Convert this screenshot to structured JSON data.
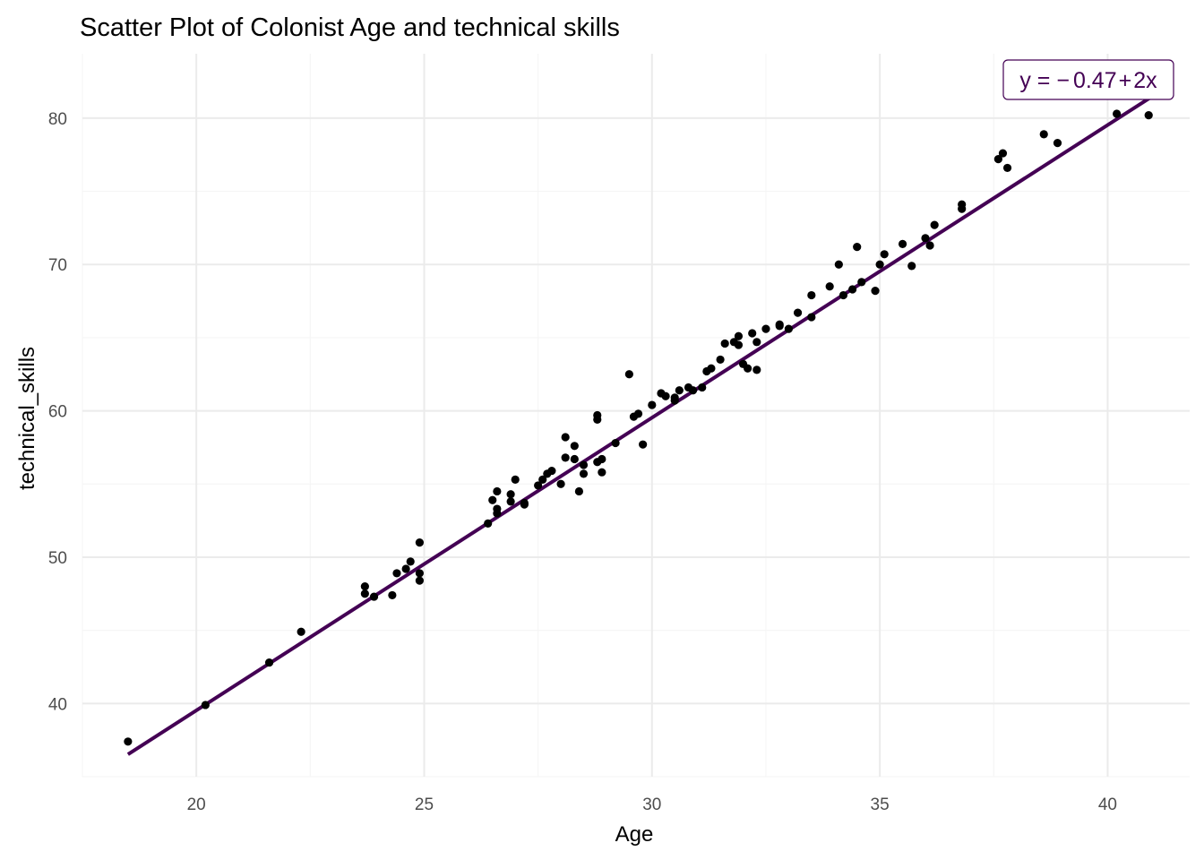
{
  "chart_data": {
    "type": "scatter",
    "title": "Scatter Plot of Colonist Age and technical skills",
    "xlabel": "Age",
    "ylabel": "technical_skills",
    "xlim": [
      17.5,
      41.8
    ],
    "ylim": [
      35,
      84.4
    ],
    "x_ticks": [
      20,
      25,
      30,
      35,
      40
    ],
    "x_tick_labels": [
      "20",
      "25",
      "30",
      "35",
      "40"
    ],
    "y_ticks": [
      40,
      50,
      60,
      70,
      80
    ],
    "y_tick_labels": [
      "40",
      "50",
      "60",
      "70",
      "80"
    ],
    "grid": true,
    "equation_label": {
      "prefix": "y = ",
      "minus": "−",
      "intercept": "0.47",
      "plus": "+",
      "slope_term": "2x",
      "position": "top-right"
    },
    "fit_line": {
      "intercept": -0.47,
      "slope": 2,
      "x_range": [
        18.5,
        41.0
      ]
    },
    "colors": {
      "points": "#000000",
      "fit_line": "#440154",
      "label_text": "#440154",
      "grid_major": "#ebebeb",
      "grid_minor": "#f5f5f5"
    },
    "points": [
      [
        18.5,
        37.4
      ],
      [
        20.2,
        39.9
      ],
      [
        21.6,
        42.8
      ],
      [
        22.3,
        44.9
      ],
      [
        23.7,
        47.5
      ],
      [
        23.7,
        48.0
      ],
      [
        23.9,
        47.3
      ],
      [
        24.3,
        47.4
      ],
      [
        24.4,
        48.9
      ],
      [
        24.6,
        49.2
      ],
      [
        24.7,
        49.7
      ],
      [
        24.9,
        51.0
      ],
      [
        24.9,
        48.9
      ],
      [
        24.9,
        48.4
      ],
      [
        26.4,
        52.3
      ],
      [
        26.5,
        53.9
      ],
      [
        26.6,
        53.3
      ],
      [
        26.6,
        53.0
      ],
      [
        26.6,
        54.5
      ],
      [
        26.9,
        54.3
      ],
      [
        26.9,
        53.8
      ],
      [
        27.0,
        55.3
      ],
      [
        27.2,
        53.7
      ],
      [
        27.2,
        53.6
      ],
      [
        27.5,
        54.9
      ],
      [
        27.6,
        55.3
      ],
      [
        27.7,
        55.7
      ],
      [
        27.8,
        55.9
      ],
      [
        28.0,
        55.0
      ],
      [
        28.1,
        58.2
      ],
      [
        28.1,
        56.8
      ],
      [
        28.3,
        56.7
      ],
      [
        28.3,
        57.6
      ],
      [
        28.4,
        54.5
      ],
      [
        28.5,
        55.7
      ],
      [
        28.5,
        56.3
      ],
      [
        28.8,
        59.7
      ],
      [
        28.8,
        59.4
      ],
      [
        28.8,
        56.5
      ],
      [
        28.9,
        55.8
      ],
      [
        28.9,
        56.7
      ],
      [
        29.2,
        57.8
      ],
      [
        29.5,
        62.5
      ],
      [
        29.6,
        59.6
      ],
      [
        29.7,
        59.8
      ],
      [
        29.8,
        57.7
      ],
      [
        30.0,
        60.4
      ],
      [
        30.2,
        61.2
      ],
      [
        30.3,
        61.0
      ],
      [
        30.5,
        60.7
      ],
      [
        30.5,
        60.9
      ],
      [
        30.6,
        61.4
      ],
      [
        30.8,
        61.6
      ],
      [
        30.9,
        61.4
      ],
      [
        31.1,
        61.6
      ],
      [
        31.2,
        62.7
      ],
      [
        31.3,
        62.9
      ],
      [
        31.5,
        63.5
      ],
      [
        31.6,
        64.6
      ],
      [
        31.8,
        64.7
      ],
      [
        31.9,
        64.5
      ],
      [
        31.9,
        65.1
      ],
      [
        32.0,
        63.2
      ],
      [
        32.1,
        62.9
      ],
      [
        32.2,
        65.3
      ],
      [
        32.3,
        62.8
      ],
      [
        32.3,
        64.7
      ],
      [
        32.5,
        65.6
      ],
      [
        32.8,
        65.9
      ],
      [
        32.8,
        65.8
      ],
      [
        33.0,
        65.6
      ],
      [
        33.2,
        66.7
      ],
      [
        33.5,
        67.9
      ],
      [
        33.5,
        66.4
      ],
      [
        33.9,
        68.5
      ],
      [
        34.1,
        70.0
      ],
      [
        34.2,
        67.9
      ],
      [
        34.4,
        68.3
      ],
      [
        34.5,
        71.2
      ],
      [
        34.6,
        68.8
      ],
      [
        34.9,
        68.2
      ],
      [
        35.0,
        70.0
      ],
      [
        35.1,
        70.7
      ],
      [
        35.5,
        71.4
      ],
      [
        35.7,
        69.9
      ],
      [
        36.0,
        71.8
      ],
      [
        36.1,
        71.3
      ],
      [
        36.2,
        72.7
      ],
      [
        36.8,
        74.1
      ],
      [
        36.8,
        73.8
      ],
      [
        37.6,
        77.2
      ],
      [
        37.7,
        77.6
      ],
      [
        37.8,
        76.6
      ],
      [
        38.6,
        78.9
      ],
      [
        38.9,
        78.3
      ],
      [
        40.2,
        80.3
      ],
      [
        40.9,
        80.2
      ]
    ]
  }
}
